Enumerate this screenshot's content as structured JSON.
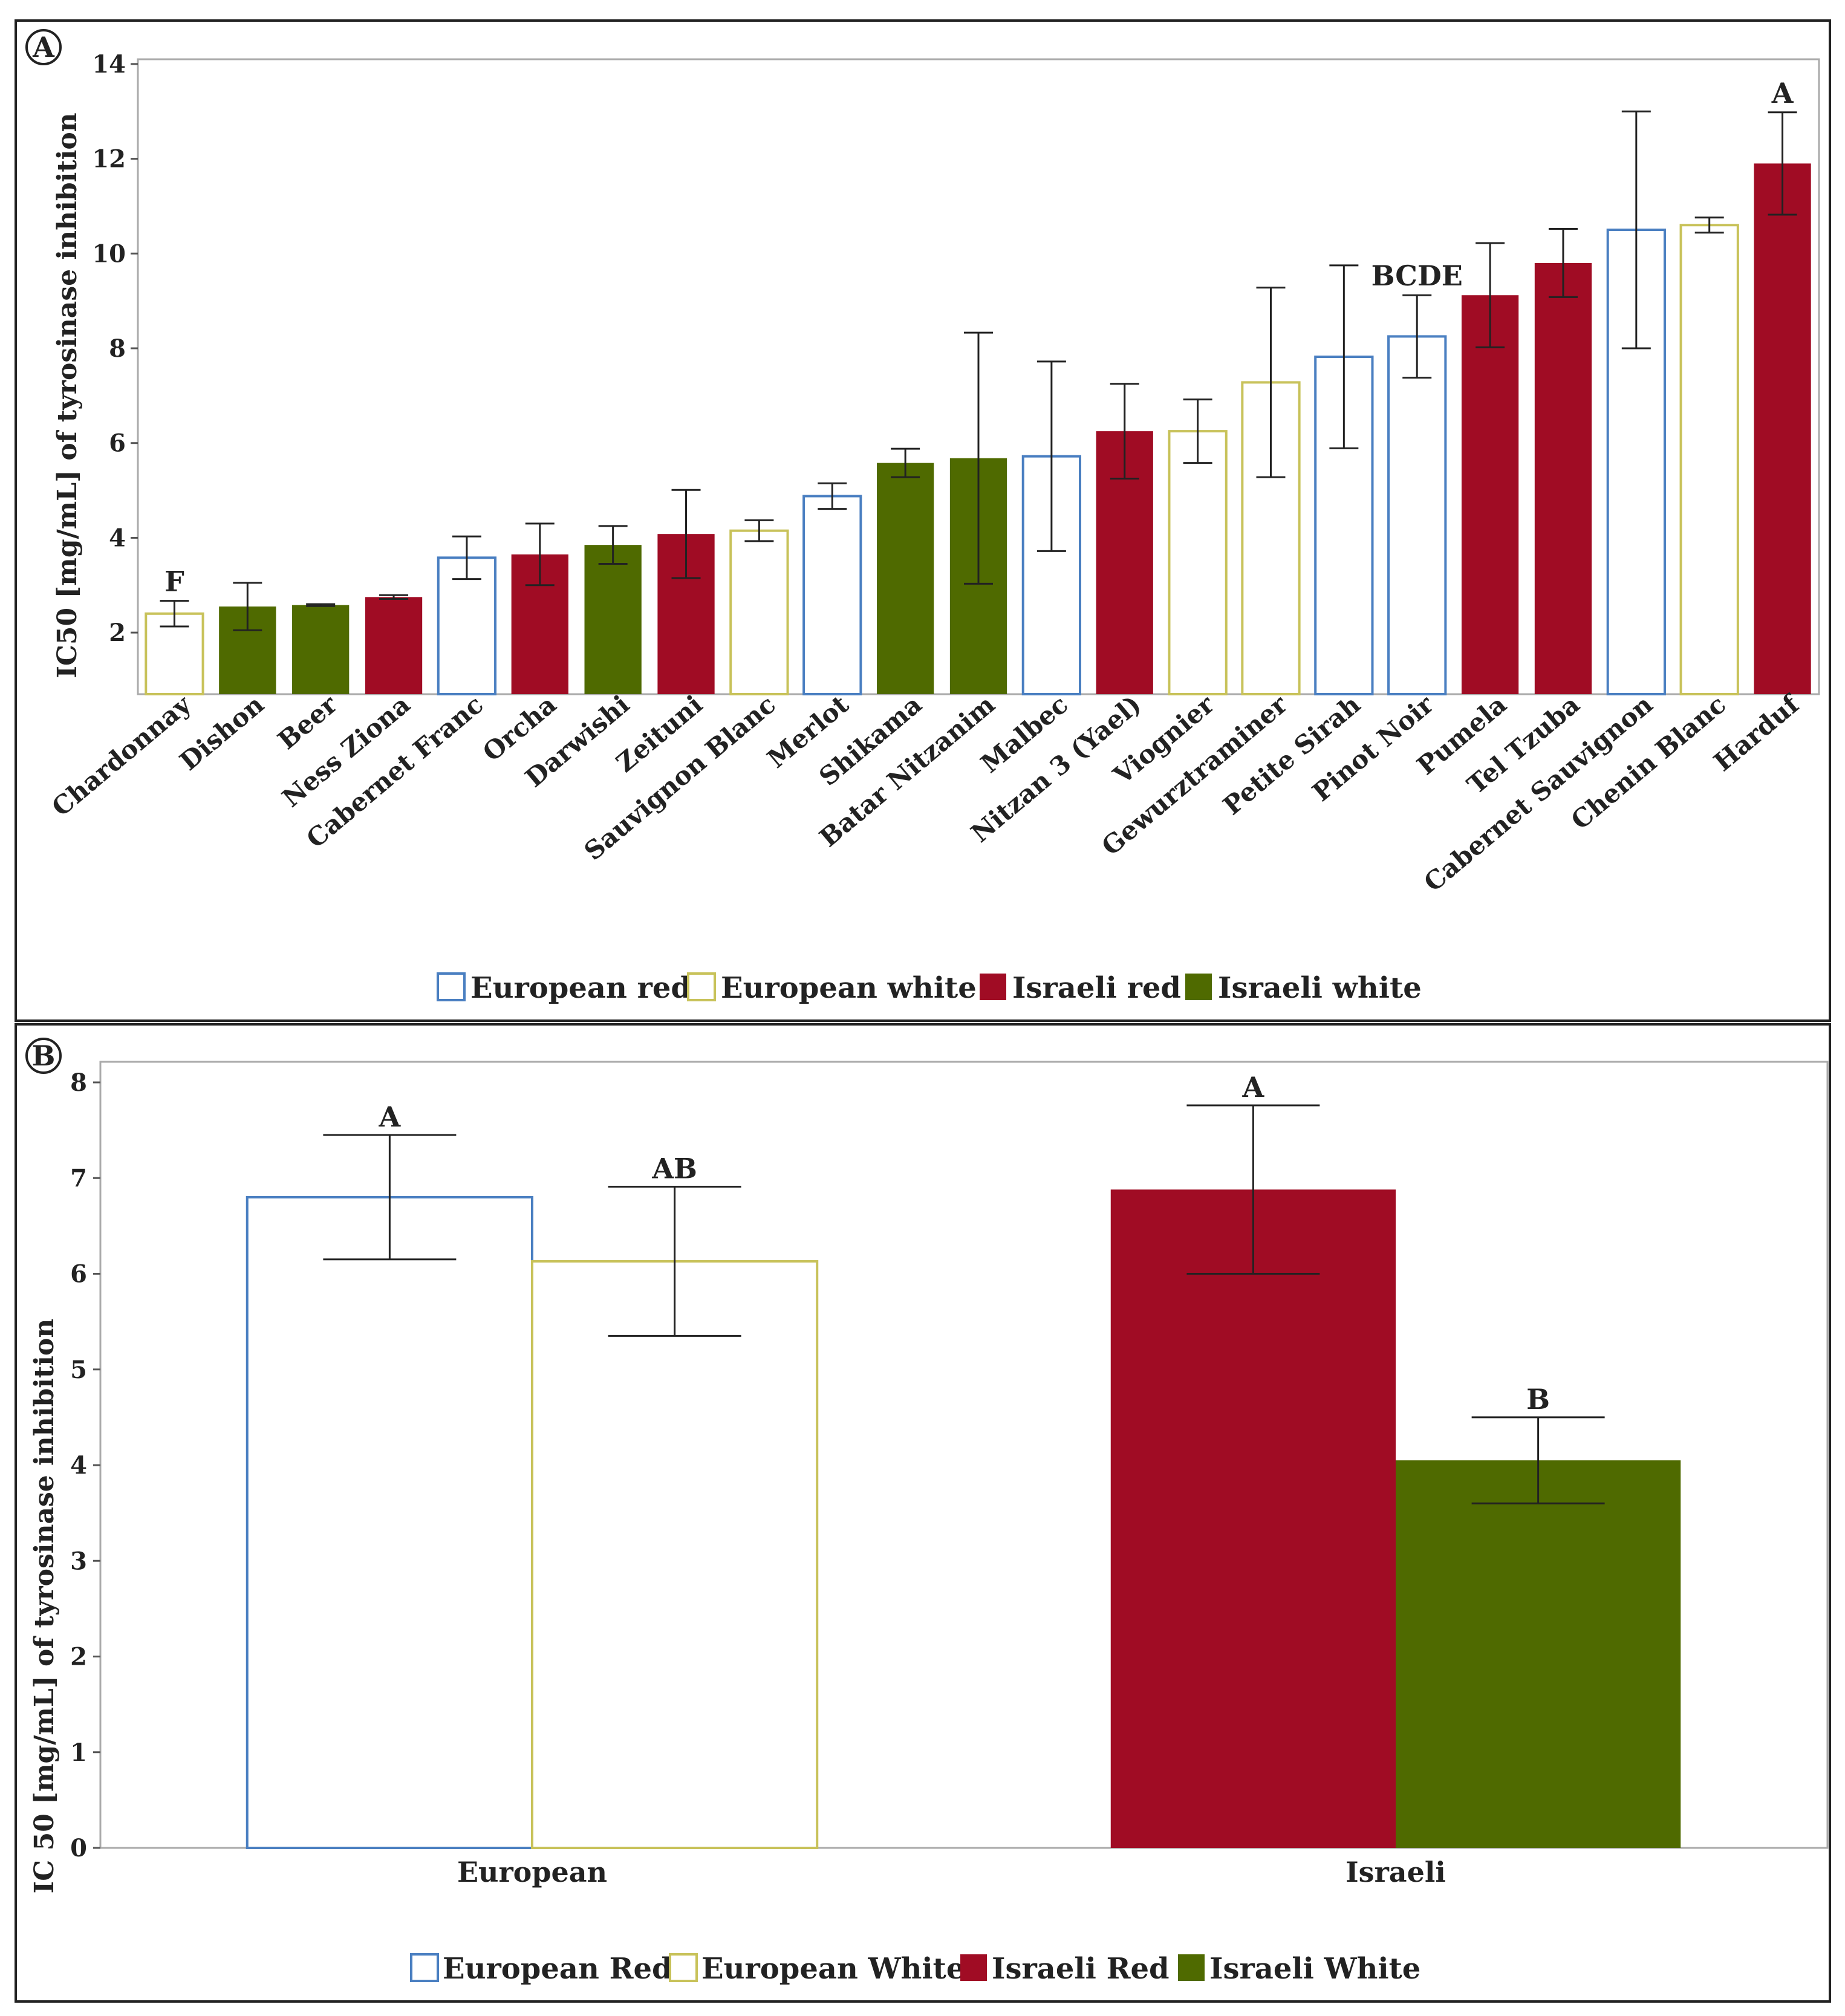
{
  "chart_data": [
    {
      "panel_label": "A",
      "type": "bar",
      "ylabel": "IC50 [mg/mL] of tyrosinase inhibition",
      "ylim": [
        0.7,
        14.1
      ],
      "yticks": [
        "2",
        "4",
        "6",
        "8",
        "10",
        "12",
        "14"
      ],
      "categories": [
        "Chardonnay",
        "Dishon",
        "Beer",
        "Ness Ziona",
        "Cabernet Franc",
        "Orcha",
        "Darwishi",
        "Zeituni",
        "Sauvignon Blanc",
        "Merlot",
        "Shikama",
        "Batar Nitzanim",
        "Malbec",
        "Nitzan 3 (Yael)",
        "Viognier",
        "Gewurztraminer",
        "Petite Sirah",
        "Pinot Noir",
        "Pumela",
        "Tel Tzuba",
        "Cabernet Sauvignon",
        "Chenin Blanc",
        "Harduf"
      ],
      "values": [
        2.4,
        2.55,
        2.58,
        2.75,
        3.58,
        3.65,
        3.85,
        4.08,
        4.15,
        4.88,
        5.58,
        5.68,
        5.72,
        6.25,
        6.25,
        7.28,
        7.82,
        8.25,
        9.12,
        9.8,
        10.5,
        10.6,
        11.9
      ],
      "errors": [
        0.27,
        0.5,
        0.02,
        0.04,
        0.45,
        0.65,
        0.4,
        0.93,
        0.22,
        0.27,
        0.3,
        2.65,
        2.0,
        1.0,
        0.67,
        2.0,
        1.93,
        0.87,
        1.1,
        0.72,
        2.5,
        0.16,
        1.08
      ],
      "groups": [
        "European white",
        "Israeli white",
        "Israeli white",
        "Israeli red",
        "European red",
        "Israeli red",
        "Israeli white",
        "Israeli red",
        "European white",
        "European red",
        "Israeli white",
        "Israeli white",
        "European red",
        "Israeli red",
        "European white",
        "European white",
        "European red",
        "European red",
        "Israeli red",
        "Israeli red",
        "European red",
        "European white",
        "Israeli red"
      ],
      "annotations": [
        {
          "category": "Chardonnay",
          "text": "F"
        },
        {
          "category": "Pinot Noir",
          "text": "BCDE"
        },
        {
          "category": "Harduf",
          "text": "A"
        }
      ],
      "legend": [
        "European red",
        "European white",
        "Israeli red",
        "Israeli white"
      ]
    },
    {
      "panel_label": "B",
      "type": "bar",
      "ylabel": "IC 50 [mg/mL] of tyrosinase inhibition",
      "ylim": [
        0,
        8
      ],
      "yticks": [
        "0",
        "1",
        "2",
        "3",
        "4",
        "5",
        "6",
        "7",
        "8"
      ],
      "categories": [
        "European",
        "Israeli"
      ],
      "series": [
        {
          "name": "European Red",
          "category": "European",
          "value": 6.8,
          "error": 0.65,
          "letter": "A"
        },
        {
          "name": "European White",
          "category": "European",
          "value": 6.13,
          "error": 0.78,
          "letter": "AB"
        },
        {
          "name": "Israeli Red",
          "category": "Israeli",
          "value": 6.88,
          "error": 0.88,
          "letter": "A"
        },
        {
          "name": "Israeli White",
          "category": "Israeli",
          "value": 4.05,
          "error": 0.45,
          "letter": "B"
        }
      ],
      "legend": [
        "European Red",
        "European White",
        "Israeli Red",
        "Israeli White"
      ]
    }
  ],
  "colors": {
    "European red": "#4a7fc1",
    "European white": "#c8c25a",
    "Israeli red": "#a00c24",
    "Israeli white": "#4f6a00"
  }
}
